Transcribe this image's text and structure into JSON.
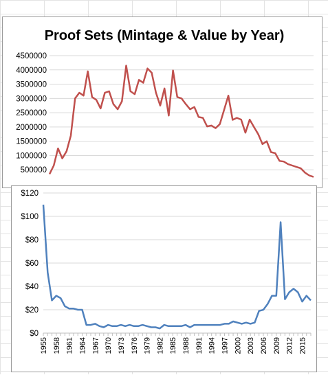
{
  "colors": {
    "mintage_line": "#c0504d",
    "value_line": "#4f81bd",
    "gridline": "#d9d9d9",
    "sheet_grid": "#e3e3e3"
  },
  "chart_data": [
    {
      "type": "line",
      "title": "Proof Sets (Mintage & Value by Year)",
      "xlabel": "",
      "ylabel": "",
      "ylim": [
        0,
        4500000
      ],
      "y_ticks": [
        "4500000",
        "4000000",
        "3500000",
        "3000000",
        "2500000",
        "2000000",
        "1500000",
        "1000000",
        "500000"
      ],
      "x": [
        1955,
        1956,
        1957,
        1958,
        1959,
        1960,
        1961,
        1962,
        1963,
        1964,
        1965,
        1966,
        1967,
        1968,
        1969,
        1970,
        1971,
        1972,
        1973,
        1974,
        1975,
        1976,
        1977,
        1978,
        1979,
        1980,
        1981,
        1982,
        1983,
        1984,
        1985,
        1986,
        1987,
        1988,
        1989,
        1990,
        1991,
        1992,
        1993,
        1994,
        1995,
        1996,
        1997,
        1998,
        1999,
        2000,
        2001,
        2002,
        2003,
        2004,
        2005,
        2006,
        2007,
        2008,
        2009,
        2010,
        2011,
        2012,
        2013,
        2014,
        2015,
        2016,
        2017
      ],
      "series": [
        {
          "values": [
            350000,
            650000,
            1250000,
            900000,
            1150000,
            1700000,
            3000000,
            3200000,
            3100000,
            3950000,
            3050000,
            2950000,
            2650000,
            3200000,
            3250000,
            2800000,
            2620000,
            2900000,
            4150000,
            3250000,
            3150000,
            3650000,
            3550000,
            4050000,
            3900000,
            3200000,
            2750000,
            3350000,
            2400000,
            3980000,
            3050000,
            3000000,
            2800000,
            2620000,
            2700000,
            2350000,
            2320000,
            2020000,
            2050000,
            1960000,
            2100000,
            2600000,
            3100000,
            2250000,
            2320000,
            2260000,
            1800000,
            2260000,
            2000000,
            1750000,
            1400000,
            1500000,
            1120000,
            1080000,
            810000,
            790000,
            700000,
            650000,
            600000,
            550000,
            400000,
            300000,
            250000
          ]
        }
      ]
    },
    {
      "type": "line",
      "title": "",
      "xlabel": "",
      "ylabel": "",
      "ylim": [
        0,
        120
      ],
      "y_ticks": [
        "$120",
        "$100",
        "$80",
        "$60",
        "$40",
        "$20",
        "$0"
      ],
      "x_ticks": [
        "1955",
        "1958",
        "1961",
        "1964",
        "1967",
        "1970",
        "1973",
        "1976",
        "1979",
        "1982",
        "1985",
        "1988",
        "1991",
        "1994",
        "1997",
        "2000",
        "2003",
        "2006",
        "2009",
        "2012",
        "2015"
      ],
      "x": [
        1955,
        1956,
        1957,
        1958,
        1959,
        1960,
        1961,
        1962,
        1963,
        1964,
        1965,
        1966,
        1967,
        1968,
        1969,
        1970,
        1971,
        1972,
        1973,
        1974,
        1975,
        1976,
        1977,
        1978,
        1979,
        1980,
        1981,
        1982,
        1983,
        1984,
        1985,
        1986,
        1987,
        1988,
        1989,
        1990,
        1991,
        1992,
        1993,
        1994,
        1995,
        1996,
        1997,
        1998,
        1999,
        2000,
        2001,
        2002,
        2003,
        2004,
        2005,
        2006,
        2007,
        2008,
        2009,
        2010,
        2011,
        2012,
        2013,
        2014,
        2015,
        2016,
        2017
      ],
      "series": [
        {
          "values": [
            110,
            52,
            28,
            32,
            30,
            23,
            21,
            21,
            20,
            20,
            7,
            7,
            8,
            6,
            5,
            7,
            6,
            6,
            7,
            6,
            7,
            6,
            6,
            7,
            6,
            5,
            5,
            4,
            7,
            6,
            6,
            6,
            6,
            7,
            5,
            7,
            7,
            7,
            7,
            7,
            7,
            7,
            8,
            8,
            10,
            9,
            8,
            9,
            8,
            9,
            19,
            20,
            25,
            32,
            32,
            95,
            29,
            35,
            38,
            35,
            27,
            32,
            28
          ]
        }
      ]
    }
  ]
}
